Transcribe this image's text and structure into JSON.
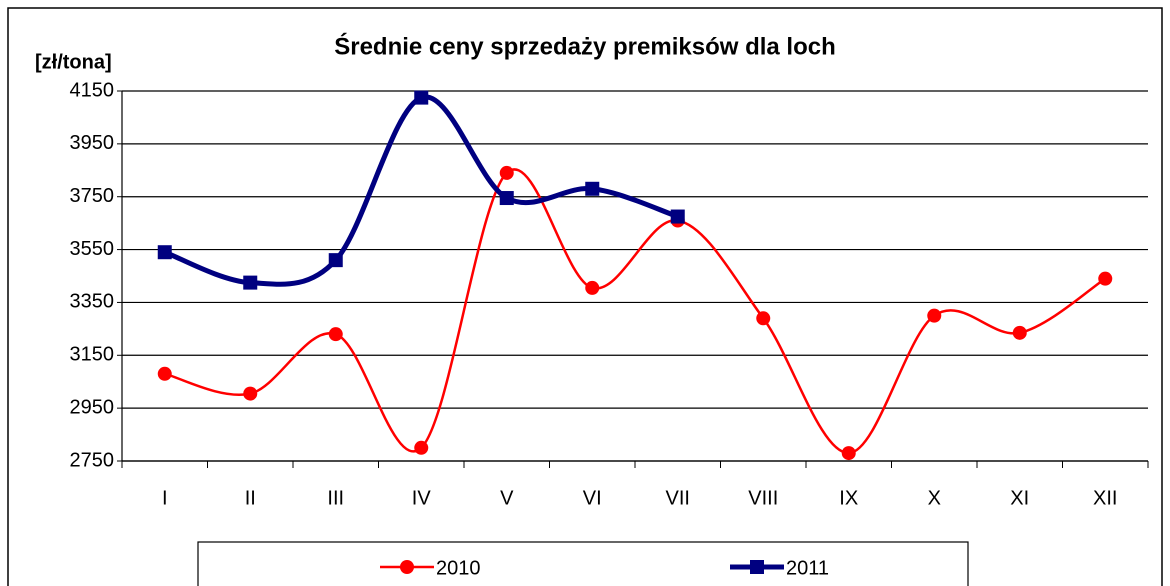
{
  "chart_data": {
    "type": "line",
    "title": "Średnie ceny sprzedaży premiksów dla loch",
    "y_label": "[zł/tona]",
    "categories": [
      "I",
      "II",
      "III",
      "IV",
      "V",
      "VI",
      "VII",
      "VIII",
      "IX",
      "X",
      "XI",
      "XII"
    ],
    "series": [
      {
        "name": "2010",
        "color": "#ff0000",
        "marker": "circle",
        "values": [
          3080,
          3005,
          3230,
          2800,
          3840,
          3405,
          3660,
          3290,
          2780,
          3300,
          3235,
          3440
        ]
      },
      {
        "name": "2011",
        "color": "#000080",
        "marker": "square",
        "values": [
          3540,
          3425,
          3510,
          4125,
          3745,
          3780,
          3675,
          null,
          null,
          null,
          null,
          null
        ]
      }
    ],
    "ylim": [
      2750,
      4150
    ],
    "yticks": [
      2750,
      2950,
      3150,
      3350,
      3550,
      3750,
      3950,
      4150
    ],
    "grid": true,
    "smooth": true,
    "legend": "bottom"
  }
}
